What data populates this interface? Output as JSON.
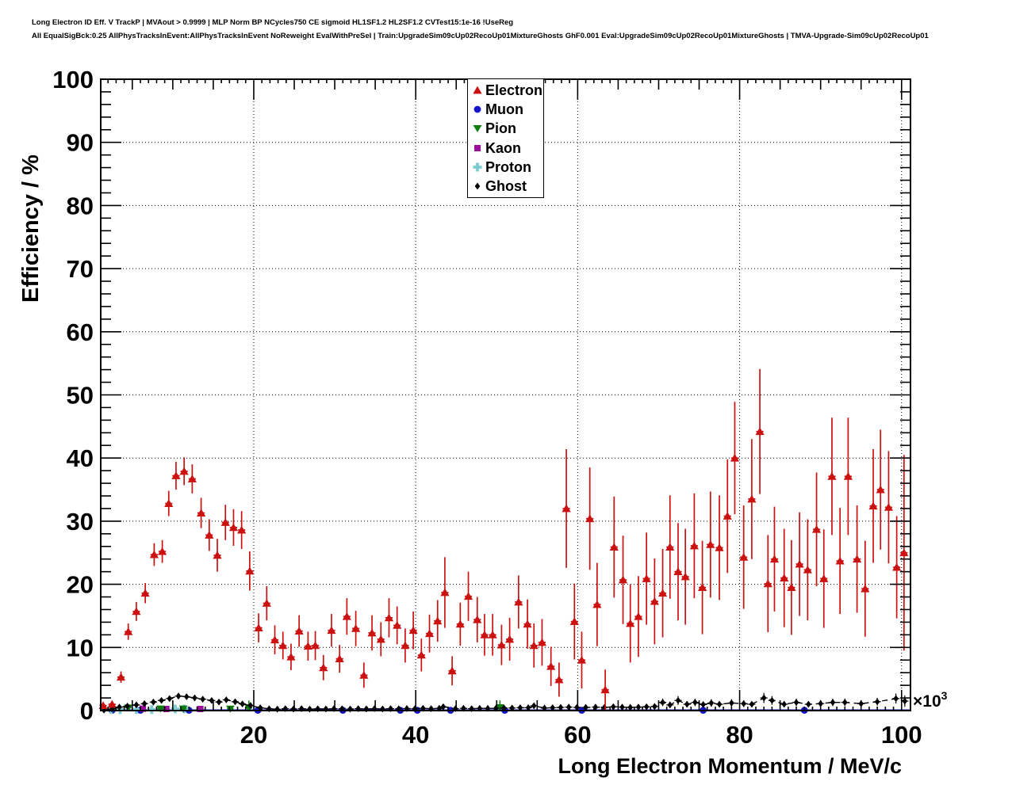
{
  "header": {
    "line1": "Long Electron ID Eff. V TrackP | MVAout > 0.9999 | MLP Norm BP NCycles750 CE sigmoid HL1SF1.2 HL2SF1.2 CVTest15:1e-16 !UseReg",
    "line2": "All EqualSigBck:0.25 AllPhysTracksInEvent:AllPhysTracksInEvent NoReweight EvalWithPreSel | Train:UpgradeSim09cUp02RecoUp01MixtureGhosts GhF0.001 Eval:UpgradeSim09cUp02RecoUp01MixtureGhosts | TMVA-Upgrade-Sim09cUp02RecoUp01"
  },
  "legend": {
    "entries": [
      {
        "label": "Electron",
        "marker": "triangle-up",
        "color": "#cc1111"
      },
      {
        "label": "Muon",
        "marker": "circle",
        "color": "#1515cc"
      },
      {
        "label": "Pion",
        "marker": "triangle-down",
        "color": "#0b7d0b"
      },
      {
        "label": "Kaon",
        "marker": "square",
        "color": "#990f9e"
      },
      {
        "label": "Proton",
        "marker": "cross",
        "color": "#7dccd4"
      },
      {
        "label": "Ghost",
        "marker": "diamond",
        "color": "#000000"
      }
    ]
  },
  "chart_data": {
    "type": "scatter",
    "title": "Long Electron ID efficiency vs momentum",
    "xlabel": "Long Electron Momentum / MeV/c",
    "ylabel": "Efficiency / %",
    "x_multiplier_base": "×10",
    "x_multiplier_exp": "3",
    "y_zero_label": "0",
    "xlim": [
      1.1,
      101.1
    ],
    "ylim": [
      0,
      100
    ],
    "x_major_ticks": [
      20,
      40,
      60,
      80,
      100
    ],
    "y_major_ticks": [
      0,
      10,
      20,
      30,
      40,
      50,
      60,
      70,
      80,
      90,
      100
    ],
    "grid": true,
    "legend_position": "top-center",
    "series": [
      {
        "name": "Muon",
        "marker": "circle",
        "color": "#1515cc",
        "err_width": 1.4,
        "xerr": 0,
        "baseline_line": 0.07,
        "line_width": 2,
        "points": [
          [
            2.5,
            0.05,
            0
          ],
          [
            6,
            0.05,
            0
          ],
          [
            12,
            0.05,
            0
          ],
          [
            20.5,
            0.05,
            0
          ],
          [
            31,
            0.05,
            0
          ],
          [
            38.1,
            0.05,
            0
          ],
          [
            40.2,
            0.05,
            0
          ],
          [
            44.3,
            0.05,
            0
          ],
          [
            51,
            0.05,
            0
          ],
          [
            60.5,
            0.05,
            0
          ],
          [
            75.5,
            0.05,
            0
          ],
          [
            88,
            0.05,
            0
          ]
        ]
      },
      {
        "name": "Proton",
        "marker": "cross",
        "color": "#7dccd4",
        "err_width": 1.4,
        "xerr": 0.4,
        "points": [
          [
            2.4,
            0.15,
            0.1
          ],
          [
            3.5,
            0.15,
            0.1
          ],
          [
            5.5,
            0.15,
            0.1
          ],
          [
            7.4,
            0.15,
            0.1
          ],
          [
            10.3,
            0.25,
            0.12
          ],
          [
            11.4,
            0.25,
            0.12
          ]
        ]
      },
      {
        "name": "Kaon",
        "marker": "square",
        "color": "#990f9e",
        "err_width": 1.4,
        "xerr": 0.4,
        "points": [
          [
            6.3,
            0.3,
            0.15
          ],
          [
            9.2,
            0.25,
            0.12
          ],
          [
            13.4,
            0.25,
            0.12
          ]
        ]
      },
      {
        "name": "Pion",
        "marker": "triangle-down",
        "color": "#0b7d0b",
        "err_width": 1.5,
        "xerr": 0.4,
        "points": [
          [
            4.5,
            0.45,
            0.35
          ],
          [
            8.5,
            0.3,
            0.25
          ],
          [
            11.3,
            0.3,
            0.25
          ],
          [
            17.1,
            0.28,
            0.22
          ],
          [
            19.4,
            0.4,
            1.2
          ],
          [
            50.4,
            0.5,
            1.1
          ]
        ]
      },
      {
        "name": "Ghost",
        "marker": "diamond",
        "color": "#000000",
        "err_width": 1.2,
        "xerr": 0.45,
        "connect": "dashed",
        "points": [
          [
            1.5,
            0.08,
            0.08
          ],
          [
            2.5,
            0.25,
            0.12
          ],
          [
            3.4,
            0.55,
            0.15
          ],
          [
            4.4,
            0.7,
            0.17
          ],
          [
            5.5,
            0.9,
            0.2
          ],
          [
            6.5,
            1.1,
            0.22
          ],
          [
            7.6,
            1.35,
            0.25
          ],
          [
            8.6,
            1.6,
            0.27
          ],
          [
            9.6,
            1.9,
            0.3
          ],
          [
            10.7,
            2.3,
            0.32
          ],
          [
            11.7,
            2.2,
            0.32
          ],
          [
            12.7,
            2.0,
            0.3
          ],
          [
            13.7,
            1.8,
            0.28
          ],
          [
            14.8,
            1.6,
            0.27
          ],
          [
            15.7,
            1.35,
            0.25
          ],
          [
            16.6,
            1.7,
            0.28
          ],
          [
            17.7,
            1.4,
            0.26
          ],
          [
            18.6,
            1.05,
            0.23
          ],
          [
            19.6,
            0.8,
            0.5
          ],
          [
            20.8,
            0.45,
            0.15
          ],
          [
            21.9,
            0.28,
            0.12
          ],
          [
            22.9,
            0.22,
            0.1
          ],
          [
            23.9,
            0.3,
            0.12
          ],
          [
            24.9,
            0.25,
            0.1
          ],
          [
            25.9,
            0.3,
            0.12
          ],
          [
            26.9,
            0.22,
            0.1
          ],
          [
            27.9,
            0.28,
            0.12
          ],
          [
            28.9,
            0.25,
            0.1
          ],
          [
            29.9,
            0.3,
            0.12
          ],
          [
            30.9,
            0.28,
            0.12
          ],
          [
            31.9,
            0.24,
            0.1
          ],
          [
            32.9,
            0.3,
            0.12
          ],
          [
            33.9,
            0.26,
            0.12
          ],
          [
            34.9,
            0.3,
            0.12
          ],
          [
            35.9,
            0.25,
            0.1
          ],
          [
            36.9,
            0.3,
            0.12
          ],
          [
            37.9,
            0.28,
            0.12
          ],
          [
            38.9,
            0.32,
            0.13
          ],
          [
            39.9,
            0.3,
            0.12
          ],
          [
            40.9,
            0.35,
            0.14
          ],
          [
            41.9,
            0.3,
            0.13
          ],
          [
            42.9,
            0.35,
            0.14
          ],
          [
            43.4,
            0.6,
            0.3
          ],
          [
            44.9,
            0.3,
            0.13
          ],
          [
            45.9,
            0.35,
            0.15
          ],
          [
            46.9,
            0.3,
            0.14
          ],
          [
            47.9,
            0.35,
            0.15
          ],
          [
            48.9,
            0.35,
            0.15
          ],
          [
            49.9,
            0.35,
            0.15
          ],
          [
            50.9,
            0.4,
            0.17
          ],
          [
            51.9,
            0.4,
            0.17
          ],
          [
            52.9,
            0.45,
            0.2
          ],
          [
            53.9,
            0.45,
            0.2
          ],
          [
            54.6,
            0.75,
            0.35
          ],
          [
            55.9,
            0.4,
            0.2
          ],
          [
            56.9,
            0.45,
            0.22
          ],
          [
            57.9,
            0.5,
            0.25
          ],
          [
            58.9,
            0.55,
            0.28
          ],
          [
            59.9,
            0.5,
            0.3
          ],
          [
            61,
            0.5,
            0.3
          ],
          [
            62.2,
            0.55,
            0.3
          ],
          [
            63.3,
            0.5,
            0.3
          ],
          [
            64.4,
            0.6,
            0.35
          ],
          [
            65.5,
            0.55,
            0.3
          ],
          [
            66.5,
            0.5,
            0.3
          ],
          [
            67.5,
            0.55,
            0.3
          ],
          [
            68.5,
            0.6,
            0.35
          ],
          [
            69.5,
            0.65,
            0.4
          ],
          [
            70.5,
            1.3,
            0.6
          ],
          [
            71.4,
            0.9,
            0.5
          ],
          [
            72.4,
            1.6,
            0.7
          ],
          [
            73.5,
            1.0,
            0.5
          ],
          [
            74.5,
            1.3,
            0.6
          ],
          [
            75.5,
            0.95,
            0.5
          ],
          [
            76.5,
            1.2,
            0.6
          ],
          [
            77.5,
            1.0,
            0.5
          ],
          [
            79,
            1.2,
            0.6
          ],
          [
            80.5,
            1.1,
            0.55
          ],
          [
            81.5,
            1.0,
            0.5
          ],
          [
            83,
            2.0,
            0.8
          ],
          [
            84,
            1.6,
            0.7
          ],
          [
            85.5,
            1.0,
            0.5
          ],
          [
            87,
            1.3,
            0.6
          ],
          [
            88.5,
            1.0,
            0.5
          ],
          [
            90,
            1.1,
            0.55
          ],
          [
            91.5,
            1.3,
            0.6
          ],
          [
            93,
            1.3,
            0.6
          ],
          [
            95,
            1.1,
            0.55
          ],
          [
            97,
            1.4,
            0.6
          ],
          [
            99.3,
            1.9,
            0.8
          ],
          [
            100.4,
            1.5,
            0.9
          ]
        ]
      },
      {
        "name": "Electron",
        "marker": "triangle-up",
        "color": "#cc1111",
        "err_width": 1.7,
        "xerr": 0.45,
        "points": [
          [
            1.4,
            0.8,
            0.3
          ],
          [
            2.5,
            1.0,
            0.4
          ],
          [
            3.6,
            5.3,
            0.9
          ],
          [
            4.5,
            12.5,
            1.3
          ],
          [
            5.5,
            15.7,
            1.5
          ],
          [
            6.6,
            18.6,
            1.6
          ],
          [
            7.7,
            24.7,
            1.8
          ],
          [
            8.7,
            25.2,
            1.8
          ],
          [
            9.5,
            32.8,
            2.0
          ],
          [
            10.4,
            37.2,
            2.2
          ],
          [
            11.4,
            37.9,
            2.2
          ],
          [
            12.4,
            36.7,
            2.3
          ],
          [
            13.5,
            31.3,
            2.4
          ],
          [
            14.5,
            27.8,
            2.5
          ],
          [
            15.5,
            24.6,
            2.6
          ],
          [
            16.5,
            29.8,
            2.8
          ],
          [
            17.5,
            29.0,
            2.9
          ],
          [
            18.5,
            28.6,
            3.0
          ],
          [
            19.5,
            22.1,
            3.1
          ],
          [
            20.6,
            13.1,
            2.3
          ],
          [
            21.6,
            17.0,
            2.7
          ],
          [
            22.6,
            11.2,
            2.3
          ],
          [
            23.6,
            10.3,
            2.2
          ],
          [
            24.6,
            8.5,
            2.1
          ],
          [
            25.6,
            12.6,
            2.5
          ],
          [
            26.7,
            10.2,
            2.3
          ],
          [
            27.6,
            10.3,
            2.3
          ],
          [
            28.6,
            6.8,
            2.0
          ],
          [
            29.6,
            12.7,
            2.6
          ],
          [
            30.6,
            8.2,
            2.2
          ],
          [
            31.5,
            14.9,
            2.9
          ],
          [
            32.6,
            13.0,
            2.8
          ],
          [
            33.6,
            5.6,
            2.0
          ],
          [
            34.6,
            12.3,
            2.8
          ],
          [
            35.7,
            11.3,
            2.7
          ],
          [
            36.7,
            14.7,
            3.1
          ],
          [
            37.7,
            13.5,
            3.0
          ],
          [
            38.7,
            10.3,
            2.7
          ],
          [
            39.7,
            12.7,
            3.0
          ],
          [
            40.7,
            8.8,
            2.6
          ],
          [
            41.7,
            12.2,
            3.0
          ],
          [
            42.7,
            14.2,
            3.3
          ],
          [
            43.6,
            18.7,
            5.6
          ],
          [
            44.5,
            6.3,
            2.3
          ],
          [
            45.5,
            13.7,
            3.4
          ],
          [
            46.5,
            18.1,
            3.9
          ],
          [
            47.6,
            14.4,
            3.6
          ],
          [
            48.5,
            12.0,
            3.3
          ],
          [
            49.5,
            12.0,
            3.3
          ],
          [
            50.6,
            10.4,
            3.2
          ],
          [
            51.6,
            11.3,
            3.4
          ],
          [
            52.7,
            17.2,
            4.2
          ],
          [
            53.8,
            13.7,
            3.9
          ],
          [
            54.6,
            10.3,
            3.5
          ],
          [
            55.6,
            10.8,
            3.7
          ],
          [
            56.7,
            7.0,
            3.1
          ],
          [
            57.7,
            4.9,
            2.7
          ],
          [
            58.6,
            32.0,
            9.4
          ],
          [
            59.6,
            14.1,
            6.0
          ],
          [
            60.5,
            8.0,
            4.5
          ],
          [
            61.5,
            30.4,
            8.1
          ],
          [
            62.4,
            16.8,
            6.6
          ],
          [
            63.4,
            3.3,
            3.2
          ],
          [
            64.5,
            25.9,
            8.0
          ],
          [
            65.6,
            20.7,
            7.0
          ],
          [
            66.5,
            13.8,
            6.2
          ],
          [
            67.5,
            14.9,
            6.4
          ],
          [
            68.5,
            20.9,
            7.3
          ],
          [
            69.5,
            17.3,
            6.8
          ],
          [
            70.5,
            18.6,
            7.0
          ],
          [
            71.4,
            25.9,
            8.2
          ],
          [
            72.4,
            22.0,
            7.7
          ],
          [
            73.3,
            21.2,
            7.6
          ],
          [
            74.4,
            26.1,
            8.3
          ],
          [
            75.4,
            19.5,
            7.4
          ],
          [
            76.4,
            26.3,
            8.4
          ],
          [
            77.5,
            25.8,
            8.3
          ],
          [
            78.5,
            30.8,
            9.0
          ],
          [
            79.4,
            40.0,
            8.9
          ],
          [
            80.5,
            24.3,
            8.2
          ],
          [
            81.5,
            33.5,
            9.5
          ],
          [
            82.5,
            44.2,
            9.9
          ],
          [
            83.5,
            20.1,
            7.7
          ],
          [
            84.3,
            24.0,
            8.3
          ],
          [
            85.5,
            21.0,
            7.8
          ],
          [
            86.4,
            19.5,
            7.5
          ],
          [
            87.4,
            23.2,
            8.2
          ],
          [
            88.4,
            22.3,
            8.0
          ],
          [
            89.5,
            28.7,
            9.0
          ],
          [
            90.4,
            20.9,
            7.8
          ],
          [
            91.4,
            37.1,
            9.3
          ],
          [
            92.4,
            23.7,
            8.4
          ],
          [
            93.4,
            37.1,
            9.3
          ],
          [
            94.5,
            24.0,
            8.5
          ],
          [
            95.5,
            19.3,
            7.6
          ],
          [
            96.5,
            32.4,
            9.0
          ],
          [
            97.4,
            35.0,
            9.5
          ],
          [
            98.4,
            32.2,
            8.9
          ],
          [
            99.4,
            22.7,
            8.1
          ],
          [
            100.3,
            25.0,
            15.5
          ]
        ]
      }
    ]
  }
}
